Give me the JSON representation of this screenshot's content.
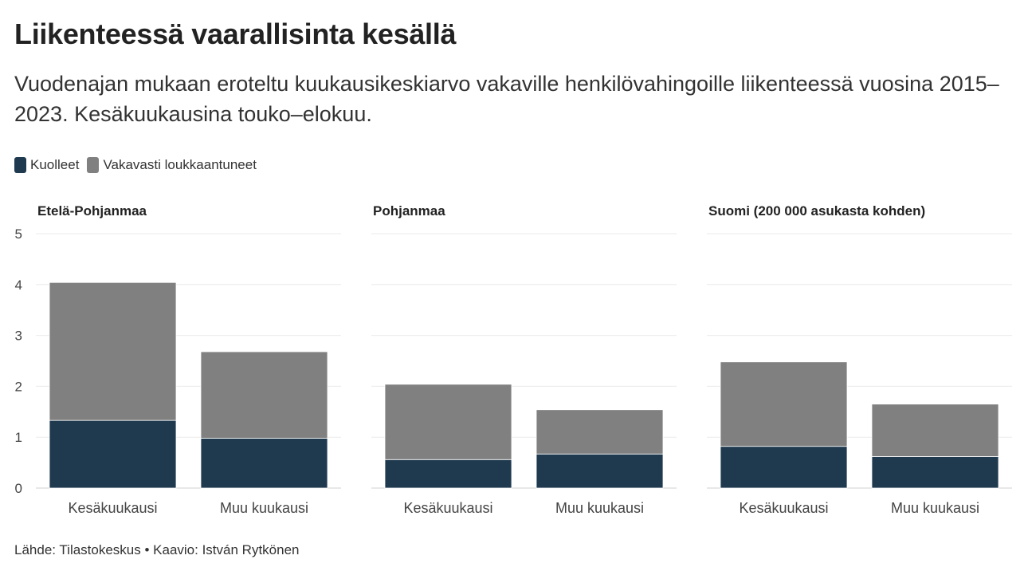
{
  "header": {
    "title": "Liikenteessä vaarallisinta kesällä",
    "subtitle": "Vuodenajan mukaan eroteltu kuukausikeskiarvo vakaville henkilövahingoille liikenteessä vuosina 2015–2023. Kesäkuukausina touko–elokuu."
  },
  "legend": {
    "items": [
      {
        "label": "Kuolleet",
        "color": "#1f3a4f"
      },
      {
        "label": "Vakavasti loukkaantuneet",
        "color": "#808080"
      }
    ]
  },
  "chart_data": {
    "type": "bar",
    "stacked": true,
    "ylim": [
      0,
      5
    ],
    "yticks": [
      0,
      1,
      2,
      3,
      4,
      5
    ],
    "categories": [
      "Kesäkuukausi",
      "Muu kuukausi"
    ],
    "panels": [
      {
        "title": "Etelä-Pohjanmaa",
        "series": [
          {
            "name": "Kuolleet",
            "values": [
              1.33,
              0.98
            ]
          },
          {
            "name": "Vakavasti loukkaantuneet",
            "values": [
              2.71,
              1.7
            ]
          }
        ]
      },
      {
        "title": "Pohjanmaa",
        "series": [
          {
            "name": "Kuolleet",
            "values": [
              0.56,
              0.67
            ]
          },
          {
            "name": "Vakavasti loukkaantuneet",
            "values": [
              1.48,
              0.87
            ]
          }
        ]
      },
      {
        "title": "Suomi (200 000 asukasta kohden)",
        "series": [
          {
            "name": "Kuolleet",
            "values": [
              0.82,
              0.62
            ]
          },
          {
            "name": "Vakavasti loukkaantuneet",
            "values": [
              1.66,
              1.03
            ]
          }
        ]
      }
    ],
    "colors": {
      "Kuolleet": "#1f3a4f",
      "Vakavasti loukkaantuneet": "#808080"
    }
  },
  "footer": {
    "source": "Lähde: Tilastokeskus • Kaavio: István Rytkönen"
  }
}
